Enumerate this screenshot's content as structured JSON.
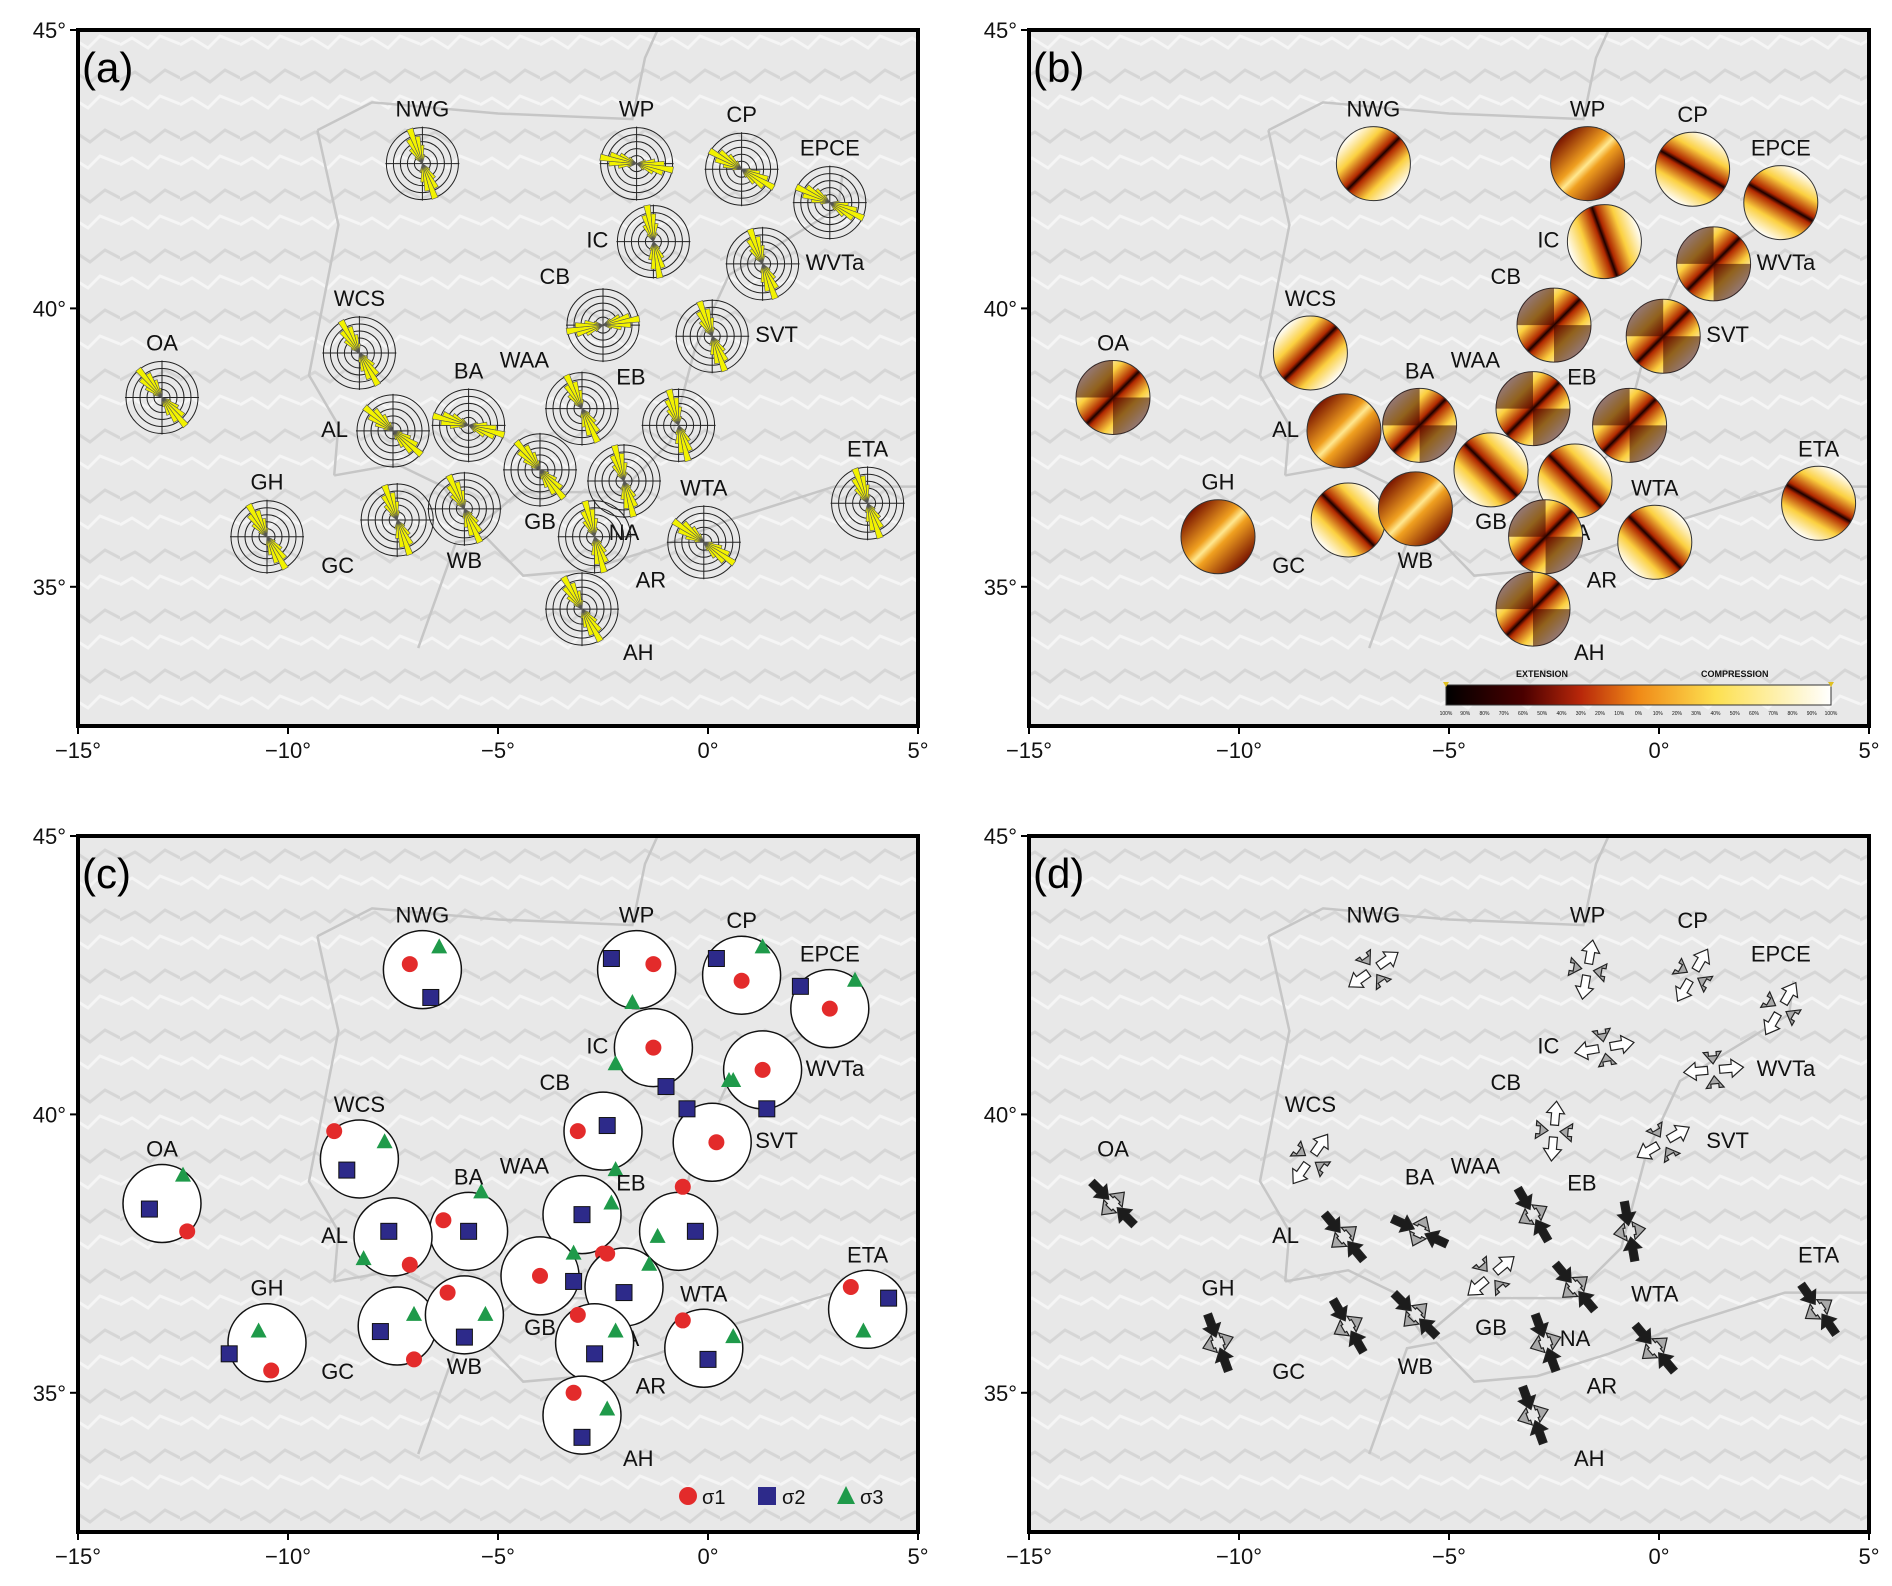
{
  "figure": {
    "panels": [
      {
        "id": "a",
        "letter": "(a)",
        "kind": "rose-diagrams"
      },
      {
        "id": "b",
        "letter": "(b)",
        "kind": "density-plots"
      },
      {
        "id": "c",
        "letter": "(c)",
        "kind": "principal-stress-axes"
      },
      {
        "id": "d",
        "letter": "(d)",
        "kind": "horizontal-stress-arrows"
      }
    ],
    "x_ticks": [
      {
        "value": -15,
        "label": "−15°"
      },
      {
        "value": -10,
        "label": "−10°"
      },
      {
        "value": -5,
        "label": "−5°"
      },
      {
        "value": 0,
        "label": "0°"
      },
      {
        "value": 5,
        "label": "5°"
      }
    ],
    "y_ticks": [
      {
        "value": 45,
        "label": "45°"
      },
      {
        "value": 40,
        "label": "40°"
      },
      {
        "value": 35,
        "label": "35°"
      }
    ],
    "lon_range": [
      -15,
      5
    ],
    "lat_range": [
      32.5,
      45
    ],
    "colorbar": {
      "extension_label": "EXTENSION",
      "compression_label": "COMPRESSION",
      "ticks": [
        "100%",
        "90%",
        "80%",
        "70%",
        "60%",
        "50%",
        "40%",
        "30%",
        "20%",
        "10%",
        "0%",
        "10%",
        "20%",
        "30%",
        "40%",
        "50%",
        "60%",
        "70%",
        "80%",
        "90%",
        "100%"
      ]
    },
    "legend": {
      "sigma1": "σ1",
      "sigma2": "σ2",
      "sigma3": "σ3"
    },
    "colors": {
      "rose_fill": "#f2f200",
      "rose_secondary": "#6fc3c3",
      "sigma1": "#e32b2b",
      "sigma2": "#2d2a8a",
      "sigma3": "#1f9a4a",
      "compression_arrow": "#1c1c1c",
      "extension_arrow": "#ffffff",
      "secondary_arrow": "#a9a9a9",
      "terrain": "#e6e6e6"
    }
  },
  "sites": [
    {
      "code": "NWG",
      "lon": -6.8,
      "lat": 42.6,
      "label_side": "top",
      "rose_strike": 160,
      "density_pattern": "band-45",
      "s1": [
        -7.1,
        42.7
      ],
      "s2": [
        -6.6,
        42.1
      ],
      "s3": [
        -6.4,
        43.0
      ],
      "regime": "extension",
      "shmax_azimuth": 55
    },
    {
      "code": "WP",
      "lon": -1.7,
      "lat": 42.6,
      "label_side": "top",
      "rose_strike": 100,
      "density_pattern": "light-center",
      "s1": [
        -1.3,
        42.7
      ],
      "s2": [
        -2.3,
        42.8
      ],
      "s3": [
        -1.8,
        42.0
      ],
      "regime": "extension",
      "shmax_azimuth": 10
    },
    {
      "code": "CP",
      "lon": 0.8,
      "lat": 42.5,
      "label_side": "top",
      "rose_strike": 120,
      "density_pattern": "band-120",
      "s1": [
        0.8,
        42.4
      ],
      "s2": [
        0.2,
        42.8
      ],
      "s3": [
        1.3,
        43.0
      ],
      "regime": "extension",
      "shmax_azimuth": 30
    },
    {
      "code": "EPCE",
      "lon": 2.9,
      "lat": 41.9,
      "label_side": "top",
      "rose_strike": 115,
      "density_pattern": "band-120",
      "s1": [
        2.9,
        41.9
      ],
      "s2": [
        2.2,
        42.3
      ],
      "s3": [
        3.5,
        42.4
      ],
      "regime": "extension",
      "shmax_azimuth": 30
    },
    {
      "code": "IC",
      "lon": -1.3,
      "lat": 41.2,
      "label_side": "left",
      "rose_strike": 170,
      "density_pattern": "band-160",
      "s1": [
        -1.3,
        41.2
      ],
      "s2": [
        -1.0,
        40.5
      ],
      "s3": [
        -2.2,
        40.9
      ],
      "regime": "extension",
      "shmax_azimuth": 80
    },
    {
      "code": "WVTa",
      "lon": 1.3,
      "lat": 40.8,
      "label_side": "right",
      "rose_strike": 160,
      "density_pattern": "light-cross",
      "s1": [
        1.3,
        40.8
      ],
      "s2": [
        1.4,
        40.1
      ],
      "s3": [
        0.6,
        40.6
      ],
      "regime": "extension",
      "shmax_azimuth": 85
    },
    {
      "code": "CB",
      "lon": -2.5,
      "lat": 39.7,
      "label_side": "top-left",
      "rose_strike": 80,
      "density_pattern": "quad",
      "s1": [
        -3.1,
        39.7
      ],
      "s2": [
        -2.4,
        39.8
      ],
      "s3": [
        -2.2,
        39.0
      ],
      "regime": "extension",
      "shmax_azimuth": 5
    },
    {
      "code": "SVT",
      "lon": 0.1,
      "lat": 39.5,
      "label_side": "right",
      "rose_strike": 160,
      "density_pattern": "quad",
      "s1": [
        0.2,
        39.5
      ],
      "s2": [
        -0.5,
        40.1
      ],
      "s3": [
        0.5,
        40.6
      ],
      "regime": "extension",
      "shmax_azimuth": 60
    },
    {
      "code": "WCS",
      "lon": -8.3,
      "lat": 39.2,
      "label_side": "top",
      "rose_strike": 150,
      "density_pattern": "band-45",
      "s1": [
        -8.9,
        39.7
      ],
      "s2": [
        -8.6,
        39.0
      ],
      "s3": [
        -7.7,
        39.5
      ],
      "regime": "extension",
      "shmax_azimuth": 35
    },
    {
      "code": "OA",
      "lon": -13.0,
      "lat": 38.4,
      "label_side": "top",
      "rose_strike": 140,
      "density_pattern": "quad",
      "s1": [
        -12.4,
        37.9
      ],
      "s2": [
        -13.3,
        38.3
      ],
      "s3": [
        -12.5,
        38.9
      ],
      "regime": "compression",
      "shmax_azimuth": 135
    },
    {
      "code": "BA",
      "lon": -5.7,
      "lat": 37.9,
      "label_side": "top",
      "rose_strike": 105,
      "density_pattern": "quad",
      "s1": [
        -6.3,
        38.1
      ],
      "s2": [
        -5.7,
        37.9
      ],
      "s3": [
        -5.4,
        38.6
      ],
      "regime": "compression",
      "shmax_azimuth": 115
    },
    {
      "code": "WAA",
      "lon": -3.0,
      "lat": 38.2,
      "label_side": "top-left",
      "rose_strike": 155,
      "density_pattern": "quad",
      "s1": [
        -2.5,
        37.5
      ],
      "s2": [
        -3.0,
        38.2
      ],
      "s3": [
        -2.3,
        38.4
      ],
      "regime": "compression",
      "shmax_azimuth": 150
    },
    {
      "code": "EB",
      "lon": -0.7,
      "lat": 37.9,
      "label_side": "top-left",
      "rose_strike": 165,
      "density_pattern": "quad",
      "s1": [
        -0.6,
        38.7
      ],
      "s2": [
        -0.3,
        37.9
      ],
      "s3": [
        -1.2,
        37.8
      ],
      "regime": "compression",
      "shmax_azimuth": 170
    },
    {
      "code": "AL",
      "lon": -7.5,
      "lat": 37.8,
      "label_side": "left",
      "rose_strike": 130,
      "density_pattern": "light-center",
      "s1": [
        -7.1,
        37.3
      ],
      "s2": [
        -7.6,
        37.9
      ],
      "s3": [
        -8.2,
        37.4
      ],
      "regime": "compression",
      "shmax_azimuth": 140
    },
    {
      "code": "GB",
      "lon": -4.0,
      "lat": 37.1,
      "label_side": "bottom",
      "rose_strike": 140,
      "density_pattern": "band-135",
      "s1": [
        -4.0,
        37.1
      ],
      "s2": [
        -3.2,
        37.0
      ],
      "s3": [
        -3.2,
        37.5
      ],
      "regime": "extension",
      "shmax_azimuth": 50
    },
    {
      "code": "NA",
      "lon": -2.0,
      "lat": 36.9,
      "label_side": "bottom",
      "rose_strike": 165,
      "density_pattern": "band-135",
      "s1": [
        -2.4,
        37.5
      ],
      "s2": [
        -2.0,
        36.8
      ],
      "s3": [
        -1.4,
        37.3
      ],
      "regime": "compression",
      "shmax_azimuth": 140
    },
    {
      "code": "GH",
      "lon": -10.5,
      "lat": 35.9,
      "label_side": "top",
      "rose_strike": 150,
      "density_pattern": "light-center",
      "s1": [
        -10.4,
        35.4
      ],
      "s2": [
        -11.4,
        35.7
      ],
      "s3": [
        -10.7,
        36.1
      ],
      "regime": "compression",
      "shmax_azimuth": 160
    },
    {
      "code": "GC",
      "lon": -7.4,
      "lat": 36.2,
      "label_side": "bottom-left",
      "rose_strike": 160,
      "density_pattern": "band-135",
      "s1": [
        -7.0,
        35.6
      ],
      "s2": [
        -7.8,
        36.1
      ],
      "s3": [
        -7.0,
        36.4
      ],
      "regime": "compression",
      "shmax_azimuth": 150
    },
    {
      "code": "WB",
      "lon": -5.8,
      "lat": 36.4,
      "label_side": "bottom",
      "rose_strike": 155,
      "density_pattern": "light-center",
      "s1": [
        -6.2,
        36.8
      ],
      "s2": [
        -5.8,
        36.0
      ],
      "s3": [
        -5.3,
        36.4
      ],
      "regime": "compression",
      "shmax_azimuth": 135
    },
    {
      "code": "AR",
      "lon": -2.7,
      "lat": 35.9,
      "label_side": "bottom-right",
      "rose_strike": 165,
      "density_pattern": "quad",
      "s1": [
        -3.1,
        36.4
      ],
      "s2": [
        -2.7,
        35.7
      ],
      "s3": [
        -2.2,
        36.1
      ],
      "regime": "compression",
      "shmax_azimuth": 160
    },
    {
      "code": "WTA",
      "lon": -0.1,
      "lat": 35.8,
      "label_side": "top",
      "rose_strike": 125,
      "density_pattern": "band-135",
      "s1": [
        -0.6,
        36.3
      ],
      "s2": [
        0.0,
        35.6
      ],
      "s3": [
        0.6,
        36.0
      ],
      "regime": "compression",
      "shmax_azimuth": 140
    },
    {
      "code": "ETA",
      "lon": 3.8,
      "lat": 36.5,
      "label_side": "top",
      "rose_strike": 160,
      "density_pattern": "band-120",
      "s1": [
        3.4,
        36.9
      ],
      "s2": [
        4.3,
        36.7
      ],
      "s3": [
        3.7,
        36.1
      ],
      "regime": "compression",
      "shmax_azimuth": 145
    },
    {
      "code": "AH",
      "lon": -3.0,
      "lat": 34.6,
      "label_side": "bottom-right",
      "rose_strike": 150,
      "density_pattern": "quad",
      "s1": [
        -3.2,
        35.0
      ],
      "s2": [
        -3.0,
        34.2
      ],
      "s3": [
        -2.4,
        34.7
      ],
      "regime": "compression",
      "shmax_azimuth": 160
    }
  ]
}
